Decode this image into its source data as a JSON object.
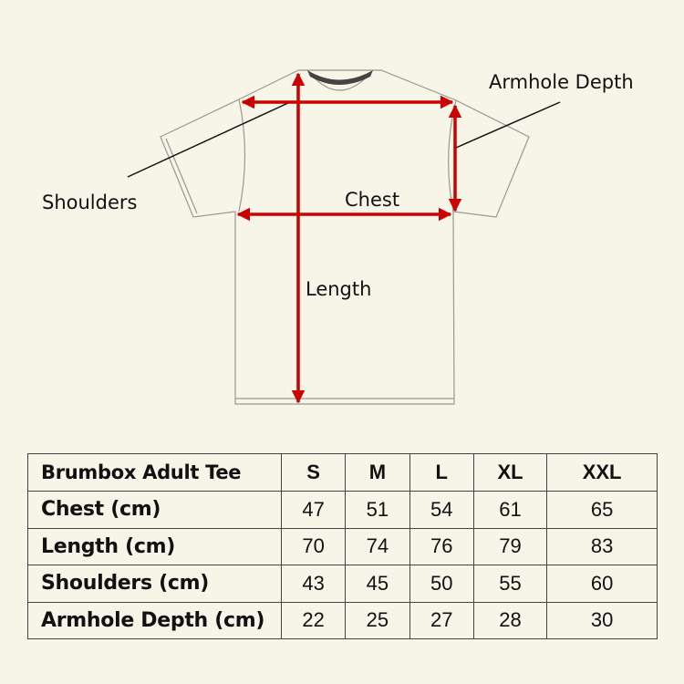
{
  "diagram": {
    "labels": {
      "armhole": "Armhole Depth",
      "shoulders": "Shoulders",
      "chest": "Chest",
      "length": "Length"
    },
    "arrow_color": "#cc0000",
    "garment_outline_color": "#9a9890"
  },
  "table": {
    "title": "Brumbox Adult Tee",
    "sizes": [
      "S",
      "M",
      "L",
      "XL",
      "XXL"
    ],
    "rows": [
      {
        "label": "Chest (cm)",
        "values": [
          "47",
          "51",
          "54",
          "61",
          "65"
        ]
      },
      {
        "label": "Length (cm)",
        "values": [
          "70",
          "74",
          "76",
          "79",
          "83"
        ]
      },
      {
        "label": "Shoulders (cm)",
        "values": [
          "43",
          "45",
          "50",
          "55",
          "60"
        ]
      },
      {
        "label": "Armhole Depth (cm)",
        "values": [
          "22",
          "25",
          "27",
          "28",
          "30"
        ]
      }
    ]
  }
}
